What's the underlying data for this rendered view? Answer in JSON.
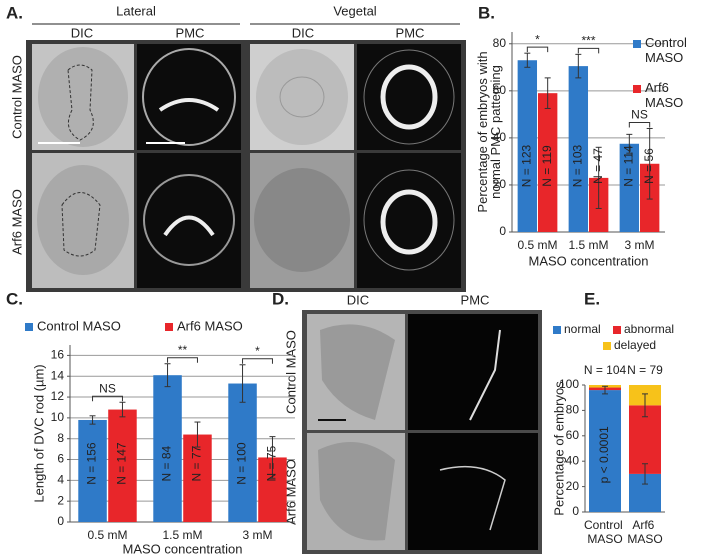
{
  "panel_a": {
    "label": "A.",
    "groups": [
      {
        "title": "Lateral",
        "columns": [
          "DIC",
          "PMC"
        ]
      },
      {
        "title": "Vegetal",
        "columns": [
          "DIC",
          "PMC"
        ]
      }
    ],
    "rows": [
      "Control MASO",
      "Arf6 MASO"
    ]
  },
  "panel_d": {
    "label": "D.",
    "columns": [
      "DIC",
      "PMC"
    ],
    "rows": [
      "Control MASO",
      "Arf6 MASO"
    ]
  },
  "chart_data": [
    {
      "panel_label": "B.",
      "type": "bar",
      "categories": [
        "0.5 mM",
        "1.5 mM",
        "3 mM"
      ],
      "series": [
        {
          "name": "Control MASO",
          "color": "#2f7ac8",
          "values": [
            73,
            70.5,
            37.5
          ],
          "errors": [
            3,
            5,
            4
          ],
          "n_labels": [
            "N = 123",
            "N = 103",
            "N = 114"
          ]
        },
        {
          "name": "Arf6 MASO",
          "color": "#e8262a",
          "values": [
            59,
            23,
            29
          ],
          "errors": [
            6.5,
            13,
            15
          ],
          "n_labels": [
            "N = 119",
            "N = 47",
            "N = 56"
          ]
        }
      ],
      "significance": [
        "*",
        "***",
        "NS"
      ],
      "ylabel": [
        "Percentage of embryos with",
        "normal PMC patterning"
      ],
      "xlabel": "MASO concentration",
      "ylim": [
        0,
        85
      ],
      "yticks": [
        0,
        20,
        40,
        60,
        80
      ],
      "grid": true,
      "legend": "right"
    },
    {
      "panel_label": "C.",
      "type": "bar",
      "categories": [
        "0.5 mM",
        "1.5 mM",
        "3 mM"
      ],
      "series": [
        {
          "name": "Control MASO",
          "color": "#2f7ac8",
          "values": [
            9.8,
            14.1,
            13.3
          ],
          "errors": [
            0.4,
            1.1,
            1.8
          ],
          "n_labels": [
            "N = 156",
            "N = 84",
            "N = 100"
          ]
        },
        {
          "name": "Arf6 MASO",
          "color": "#e8262a",
          "values": [
            10.8,
            8.4,
            6.2
          ],
          "errors": [
            0.7,
            1.2,
            2.0
          ],
          "n_labels": [
            "N = 147",
            "N = 77",
            "N = 75"
          ]
        }
      ],
      "significance": [
        "NS",
        "**",
        "*"
      ],
      "ylabel": [
        "Length of DVC rod (µm)"
      ],
      "xlabel": "MASO concentration",
      "ylim": [
        0,
        17
      ],
      "yticks": [
        0,
        2,
        4,
        6,
        8,
        10,
        12,
        14,
        16
      ],
      "grid": true,
      "legend": "top"
    },
    {
      "panel_label": "E.",
      "type": "stacked_bar",
      "categories": [
        "Control MASO",
        "Arf6 MASO"
      ],
      "series": [
        {
          "name": "normal",
          "color": "#2f7ac8",
          "values": [
            96,
            30
          ],
          "errors": [
            3,
            8
          ]
        },
        {
          "name": "abnormal",
          "color": "#e8262a",
          "values": [
            2,
            54
          ],
          "errors": [
            null,
            9
          ]
        },
        {
          "name": "delayed",
          "color": "#f7c21a",
          "values": [
            2,
            16
          ]
        }
      ],
      "totals_labels": [
        "N = 104",
        "N = 79"
      ],
      "annotation": "p < 0.0001",
      "ylabel": [
        "Percentage of embryos"
      ],
      "ylim": [
        0,
        100
      ],
      "yticks": [
        0,
        20,
        40,
        60,
        80,
        100
      ],
      "grid": false,
      "legend": "top"
    }
  ]
}
